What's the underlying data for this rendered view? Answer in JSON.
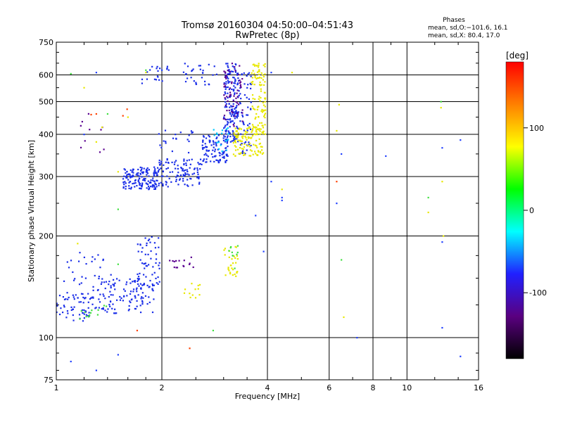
{
  "chart_data": {
    "type": "scatter",
    "title": "Tromsø 20160304 04:50:00–04:51:43",
    "subtitle": "RwPretec (8p)",
    "xlabel": "Frequency [MHz]",
    "ylabel": "Stationary phase Virtual Height [km]",
    "x_scale": "log",
    "y_scale": "log",
    "xlim": [
      1,
      16
    ],
    "ylim": [
      75,
      750
    ],
    "x_ticks": [
      1,
      2,
      4,
      6,
      8,
      10,
      16
    ],
    "y_ticks": [
      75,
      100,
      200,
      300,
      400,
      500,
      600,
      750
    ],
    "grid": true,
    "legend_title": "Phases",
    "legend_lines": [
      "mean, sd,O:−101.6, 16.1",
      "mean, sd,X:  80.4, 17.0"
    ],
    "colorbar": {
      "label": "[deg]",
      "range": [
        -180,
        180
      ],
      "ticks": [
        100,
        0,
        -100
      ],
      "colors": [
        "#000000",
        "#5a0080",
        "#2020ff",
        "#00ffff",
        "#00ff00",
        "#ffff00",
        "#ff8000",
        "#ff0000"
      ]
    },
    "series": [
      {
        "color": "#1a2ee8",
        "clusters": [
          {
            "x": [
              1.0,
              1.3
            ],
            "y": [
              112,
              135
            ],
            "n": 60
          },
          {
            "x": [
              1.3,
              1.9
            ],
            "y": [
              118,
              150
            ],
            "n": 110
          },
          {
            "x": [
              1.7,
              1.98
            ],
            "y": [
              140,
              200
            ],
            "n": 60
          },
          {
            "x": [
              1.05,
              1.45
            ],
            "y": [
              130,
              180
            ],
            "n": 40
          },
          {
            "x": [
              1.55,
              1.95
            ],
            "y": [
              275,
              320
            ],
            "n": 150
          },
          {
            "x": [
              1.95,
              2.6
            ],
            "y": [
              280,
              340
            ],
            "n": 110
          },
          {
            "x": [
              2.6,
              3.1
            ],
            "y": [
              330,
              400
            ],
            "n": 100
          },
          {
            "x": [
              3.0,
              3.3
            ],
            "y": [
              380,
              650
            ],
            "n": 170
          },
          {
            "x": [
              3.3,
              3.6
            ],
            "y": [
              350,
              620
            ],
            "n": 60
          },
          {
            "x": [
              2.3,
              2.9
            ],
            "y": [
              560,
              650
            ],
            "n": 30
          },
          {
            "x": [
              1.75,
              2.1
            ],
            "y": [
              560,
              640
            ],
            "n": 20
          },
          {
            "x": [
              1.9,
              2.5
            ],
            "y": [
              350,
              420
            ],
            "n": 20
          }
        ]
      },
      {
        "color": "#5a0090",
        "clusters": [
          {
            "x": [
              3.0,
              3.4
            ],
            "y": [
              420,
              650
            ],
            "n": 60
          },
          {
            "x": [
              2.1,
              2.5
            ],
            "y": [
              160,
              175
            ],
            "n": 15
          },
          {
            "x": [
              1.15,
              1.4
            ],
            "y": [
              350,
              500
            ],
            "n": 10
          }
        ]
      },
      {
        "color": "#e8e800",
        "clusters": [
          {
            "x": [
              3.2,
              3.9
            ],
            "y": [
              345,
              420
            ],
            "n": 120
          },
          {
            "x": [
              3.6,
              3.95
            ],
            "y": [
              400,
              650
            ],
            "n": 100
          },
          {
            "x": [
              3.0,
              3.3
            ],
            "y": [
              150,
              190
            ],
            "n": 30
          },
          {
            "x": [
              2.3,
              2.6
            ],
            "y": [
              130,
              145
            ],
            "n": 12
          }
        ]
      },
      {
        "color": "#00c8ff",
        "clusters": [
          {
            "x": [
              2.8,
              3.1
            ],
            "y": [
              350,
              420
            ],
            "n": 18
          }
        ]
      },
      {
        "color": "#40e040",
        "clusters": [
          {
            "x": [
              1.15,
              1.4
            ],
            "y": [
              112,
              125
            ],
            "n": 12
          },
          {
            "x": [
              3.1,
              3.3
            ],
            "y": [
              160,
              190
            ],
            "n": 10
          }
        ]
      },
      {
        "color": "#ff4000",
        "clusters": [
          {
            "x": [
              1.25,
              1.7
            ],
            "y": [
              420,
              500
            ],
            "n": 3
          }
        ]
      },
      {
        "color": "#2040ff",
        "points": [
          [
            4.4,
            260
          ],
          [
            4.4,
            255
          ],
          [
            6.3,
            250
          ],
          [
            8.7,
            345
          ],
          [
            12.6,
            365
          ],
          [
            12.6,
            192
          ],
          [
            14.2,
            385
          ],
          [
            14.2,
            88
          ],
          [
            7.2,
            100
          ],
          [
            12.6,
            107
          ],
          [
            1.1,
            85
          ],
          [
            1.3,
            80
          ],
          [
            1.5,
            89
          ],
          [
            1.3,
            610
          ],
          [
            2.0,
            620
          ],
          [
            4.1,
            290
          ],
          [
            3.7,
            230
          ],
          [
            3.9,
            180
          ],
          [
            1.2,
            400
          ],
          [
            4.1,
            610
          ],
          [
            6.5,
            350
          ]
        ]
      },
      {
        "color": "#e8e800",
        "points": [
          [
            4.4,
            275
          ],
          [
            4.7,
            610
          ],
          [
            6.4,
            490
          ],
          [
            6.3,
            410
          ],
          [
            6.6,
            115
          ],
          [
            12.5,
            480
          ],
          [
            12.6,
            290
          ],
          [
            11.5,
            235
          ],
          [
            12.7,
            200
          ],
          [
            1.35,
            420
          ],
          [
            1.3,
            380
          ],
          [
            1.5,
            310
          ],
          [
            1.2,
            550
          ],
          [
            1.15,
            190
          ],
          [
            1.6,
            450
          ],
          [
            1.8,
            610
          ]
        ]
      },
      {
        "color": "#40e040",
        "points": [
          [
            2.8,
            105
          ],
          [
            6.5,
            170
          ],
          [
            12.5,
            500
          ],
          [
            11.5,
            260
          ],
          [
            1.5,
            240
          ],
          [
            1.4,
            460
          ],
          [
            1.1,
            605
          ],
          [
            1.5,
            165
          ],
          [
            1.8,
            620
          ]
        ]
      },
      {
        "color": "#ff4000",
        "points": [
          [
            2.4,
            93
          ],
          [
            6.3,
            290
          ],
          [
            1.7,
            105
          ],
          [
            1.3,
            460
          ]
        ]
      }
    ]
  }
}
